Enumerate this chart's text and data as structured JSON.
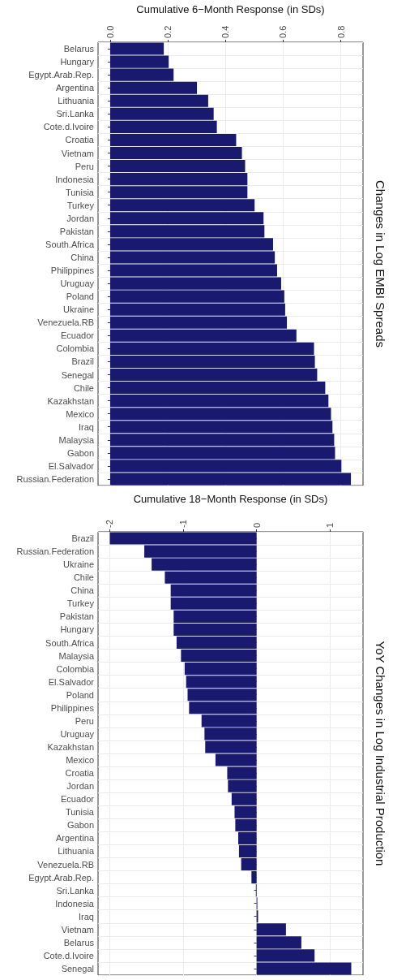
{
  "chart_data": [
    {
      "type": "bar",
      "orientation": "horizontal",
      "y2label": "Changes in Log EMBI Spreads",
      "xlabel": "Cumulative 6−Month Response (in SDs)",
      "categories": [
        "Belarus",
        "Hungary",
        "Egypt.Arab.Rep.",
        "Argentina",
        "Lithuania",
        "Sri.Lanka",
        "Cote.d.Ivoire",
        "Croatia",
        "Vietnam",
        "Peru",
        "Indonesia",
        "Tunisia",
        "Turkey",
        "Jordan",
        "Pakistan",
        "South.Africa",
        "China",
        "Philippines",
        "Uruguay",
        "Poland",
        "Ukraine",
        "Venezuela.RB",
        "Ecuador",
        "Colombia",
        "Brazil",
        "Senegal",
        "Chile",
        "Kazakhstan",
        "Mexico",
        "Iraq",
        "Malaysia",
        "Gabon",
        "El.Salvador",
        "Russian.Federation"
      ],
      "values": [
        0.186,
        0.203,
        0.22,
        0.301,
        0.34,
        0.359,
        0.37,
        0.437,
        0.457,
        0.468,
        0.476,
        0.476,
        0.501,
        0.532,
        0.535,
        0.565,
        0.571,
        0.579,
        0.593,
        0.604,
        0.607,
        0.613,
        0.646,
        0.707,
        0.71,
        0.718,
        0.746,
        0.757,
        0.766,
        0.771,
        0.777,
        0.78,
        0.802,
        0.835
      ],
      "color": "#191970",
      "xlim": [
        -0.042,
        0.877
      ],
      "xticks": [
        {
          "value": 0,
          "label": "0.0"
        },
        {
          "value": 0.2,
          "label": "0.2"
        },
        {
          "value": 0.4,
          "label": "0.4"
        },
        {
          "value": 0.6,
          "label": "0.6"
        },
        {
          "value": 0.8,
          "label": "0.8"
        }
      ],
      "grid": true
    },
    {
      "type": "bar",
      "orientation": "horizontal",
      "y2label": "YoY Changes in Log Industrial Production",
      "xlabel": "Cumulative 18−Month Response (in SDs)",
      "categories": [
        "Brazil",
        "Russian.Federation",
        "Ukraine",
        "Chile",
        "China",
        "Turkey",
        "Pakistan",
        "Hungary",
        "South.Africa",
        "Malaysia",
        "Colombia",
        "El.Salvador",
        "Poland",
        "Philippines",
        "Peru",
        "Uruguay",
        "Kazakhstan",
        "Mexico",
        "Croatia",
        "Jordan",
        "Ecuador",
        "Tunisia",
        "Gabon",
        "Argentina",
        "Lithuania",
        "Venezuela.RB",
        "Egypt.Arab.Rep.",
        "Sri.Lanka",
        "Indonesia",
        "Iraq",
        "Vietnam",
        "Belarus",
        "Cote.d.Ivoire",
        "Senegal"
      ],
      "values": [
        -2.0,
        -1.53,
        -1.43,
        -1.25,
        -1.17,
        -1.17,
        -1.13,
        -1.13,
        -1.09,
        -1.03,
        -0.98,
        -0.96,
        -0.94,
        -0.92,
        -0.75,
        -0.71,
        -0.7,
        -0.56,
        -0.4,
        -0.39,
        -0.34,
        -0.3,
        -0.29,
        -0.25,
        -0.24,
        -0.21,
        -0.07,
        -0.01,
        0.01,
        0.02,
        0.4,
        0.61,
        0.79,
        1.29
      ],
      "color": "#191970",
      "xlim": [
        -2.16,
        1.45
      ],
      "xticks": [
        {
          "value": -2,
          "label": "-2"
        },
        {
          "value": -1,
          "label": "-1"
        },
        0,
        1
      ],
      "grid": true
    }
  ]
}
